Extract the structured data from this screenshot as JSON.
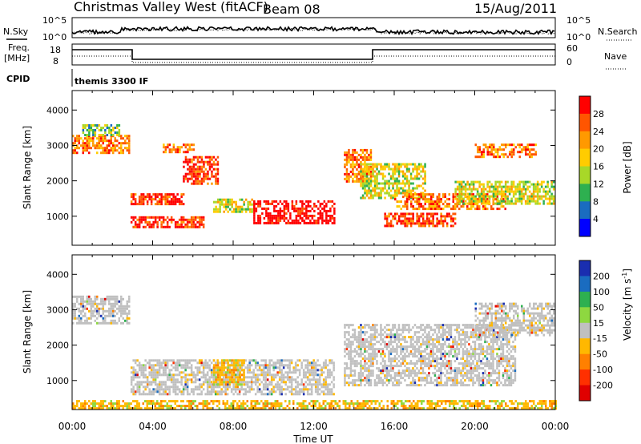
{
  "header": {
    "title": "Christmas Valley West (fitACF)",
    "beam": "Beam 08",
    "date": "15/Aug/2011"
  },
  "top_panels": {
    "nsky_label": "N.Sky",
    "nsky_ticks": [
      "10^5",
      "10^0"
    ],
    "nsearch_label": "N.Search",
    "nsearch_ticks": [
      "10^5",
      "10^0"
    ],
    "freq_label": "Freq.",
    "freq_unit": "[MHz]",
    "freq_ticks": [
      "18",
      "8"
    ],
    "nave_label": "Nave",
    "nave_ticks": [
      "60",
      "0"
    ],
    "cpid_label": "CPID",
    "cpid_value": "themis 3300 IF"
  },
  "chart_data": [
    {
      "type": "heatmap",
      "panel": "power",
      "ylabel": "Slant Range [km]",
      "y_ticks": [
        "1000",
        "2000",
        "3000",
        "4000"
      ],
      "ylim": [
        180,
        4550
      ],
      "xlim": [
        0,
        24
      ],
      "colorbar_label": "Power [dB]",
      "colorbar_ticks": [
        "28",
        "24",
        "20",
        "16",
        "12",
        "8",
        "4"
      ],
      "colorbar_colors": [
        "#ff0000",
        "#ff5500",
        "#ff9900",
        "#ffcc00",
        "#a8d828",
        "#2eb050",
        "#1a6cc0",
        "#0000ff"
      ],
      "regions": [
        {
          "x": [
            0.0,
            2.8
          ],
          "y": [
            2800,
            3300
          ],
          "level": 5
        },
        {
          "x": [
            0.5,
            2.3
          ],
          "y": [
            3300,
            3600
          ],
          "level": 2
        },
        {
          "x": [
            2.9,
            5.5
          ],
          "y": [
            1350,
            1650
          ],
          "level": 6
        },
        {
          "x": [
            2.9,
            6.5
          ],
          "y": [
            700,
            1000
          ],
          "level": 6
        },
        {
          "x": [
            5.5,
            7.2
          ],
          "y": [
            1950,
            2700
          ],
          "level": 6
        },
        {
          "x": [
            4.5,
            6.0
          ],
          "y": [
            2800,
            3050
          ],
          "level": 5
        },
        {
          "x": [
            7.0,
            9.0
          ],
          "y": [
            1150,
            1500
          ],
          "level": 3
        },
        {
          "x": [
            9.0,
            13.0
          ],
          "y": [
            800,
            1450
          ],
          "level": 7
        },
        {
          "x": [
            13.5,
            14.8
          ],
          "y": [
            2000,
            2900
          ],
          "level": 5
        },
        {
          "x": [
            14.3,
            17.5
          ],
          "y": [
            1500,
            2500
          ],
          "level": 3
        },
        {
          "x": [
            15.5,
            19.0
          ],
          "y": [
            750,
            1100
          ],
          "level": 6
        },
        {
          "x": [
            16.0,
            21.5
          ],
          "y": [
            1200,
            1650
          ],
          "level": 5
        },
        {
          "x": [
            20.0,
            23.0
          ],
          "y": [
            2700,
            3050
          ],
          "level": 5
        },
        {
          "x": [
            19.0,
            23.9
          ],
          "y": [
            1350,
            2000
          ],
          "level": 3
        }
      ]
    },
    {
      "type": "heatmap",
      "panel": "velocity",
      "ylabel": "Slant Range [km]",
      "xlabel": "Time UT",
      "x_ticks": [
        "00:00",
        "04:00",
        "08:00",
        "12:00",
        "16:00",
        "20:00",
        "00:00"
      ],
      "y_ticks": [
        "1000",
        "2000",
        "3000",
        "4000"
      ],
      "ylim": [
        180,
        4550
      ],
      "xlim": [
        0,
        24
      ],
      "colorbar_label": "Velocity [m s",
      "colorbar_label_exp": "-1",
      "colorbar_ticks": [
        "200",
        "100",
        "50",
        "15",
        "-15",
        "-50",
        "-100",
        "-200"
      ],
      "colorbar_colors": [
        "#1a2eb0",
        "#1a6cc0",
        "#2eb050",
        "#8ed840",
        "#c0c0c0",
        "#ffb800",
        "#ff8000",
        "#ff3000",
        "#e00000"
      ],
      "regions": [
        {
          "x": [
            0.0,
            2.8
          ],
          "y": [
            2600,
            3400
          ],
          "level": 0
        },
        {
          "x": [
            2.9,
            13.0
          ],
          "y": [
            600,
            1600
          ],
          "level": 0
        },
        {
          "x": [
            7.0,
            8.5
          ],
          "y": [
            900,
            1600
          ],
          "level": 1
        },
        {
          "x": [
            13.5,
            22.0
          ],
          "y": [
            900,
            2600
          ],
          "level": 0
        },
        {
          "x": [
            20.0,
            23.9
          ],
          "y": [
            2300,
            3200
          ],
          "level": 0
        },
        {
          "x": [
            0.0,
            24.0
          ],
          "y": [
            200,
            450
          ],
          "level": 1
        }
      ]
    }
  ]
}
